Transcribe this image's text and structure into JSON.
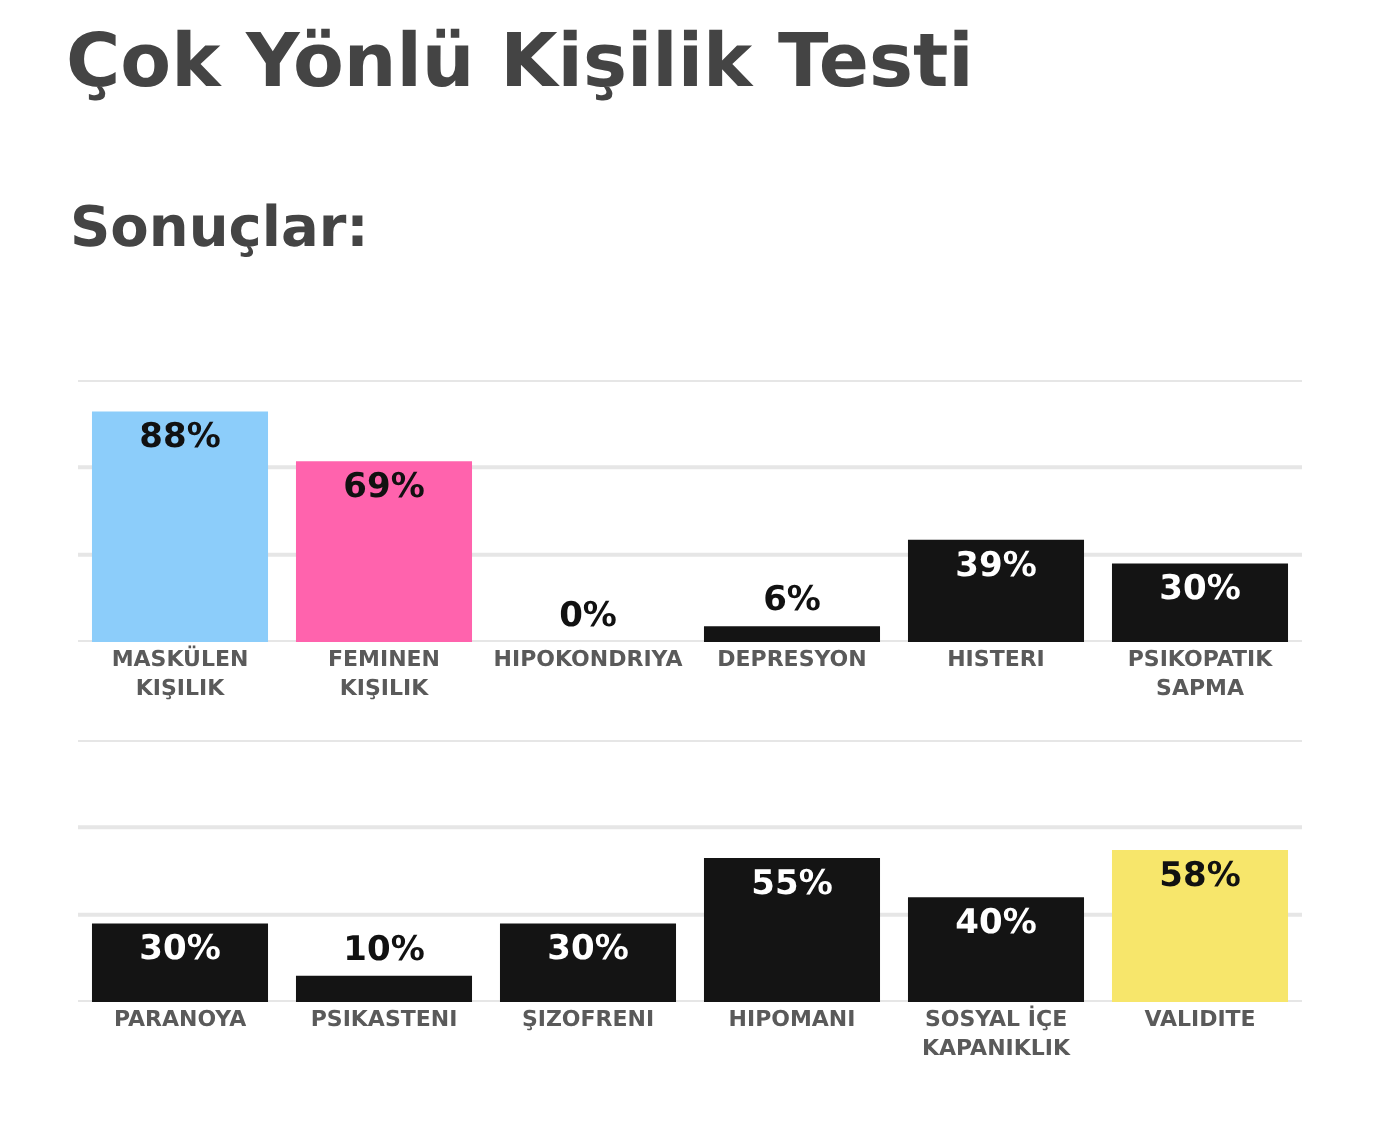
{
  "chart_data": [
    {
      "type": "bar",
      "title": "Çok Yönlü Kişilik Testi",
      "subtitle": "Sonuçlar:",
      "categories": [
        "MASKÜLEN KIŞILIK",
        "FEMINEN KIŞILIK",
        "HIPOKONDRIYA",
        "DEPRESYON",
        "HISTERI",
        "PSIKOPATIK SAPMA"
      ],
      "values": [
        88,
        69,
        0,
        6,
        39,
        30
      ],
      "value_labels": [
        "88%",
        "69%",
        "0%",
        "6%",
        "39%",
        "30%"
      ],
      "colors": [
        "#8ccdfa",
        "#ff63ad",
        "#141414",
        "#141414",
        "#141414",
        "#141414"
      ],
      "ylim": [
        0,
        100
      ],
      "yticks": [
        {
          "value": 0,
          "label": null
        },
        {
          "value": 33.3,
          "label": null
        },
        {
          "value": 66.7,
          "label": null
        },
        {
          "value": 100,
          "label": null
        }
      ],
      "grid": "y",
      "tick_labels": "x"
    },
    {
      "type": "bar",
      "categories": [
        "PARANOYA",
        "PSIKASTENI",
        "ŞIZOFRENI",
        "HIPOMANI",
        "SOSYAL İÇE KAPANIKLIK",
        "VALIDITE"
      ],
      "values": [
        30,
        10,
        30,
        55,
        40,
        58
      ],
      "value_labels": [
        "30%",
        "10%",
        "30%",
        "55%",
        "40%",
        "58%"
      ],
      "colors": [
        "#141414",
        "#141414",
        "#141414",
        "#141414",
        "#141414",
        "#f7e66b"
      ],
      "ylim": [
        0,
        100
      ],
      "yticks": [
        {
          "value": 0,
          "label": null
        },
        {
          "value": 33.3,
          "label": null
        },
        {
          "value": 66.7,
          "label": null
        },
        {
          "value": 100,
          "label": null
        }
      ],
      "grid": "y",
      "tick_labels": "x"
    }
  ]
}
